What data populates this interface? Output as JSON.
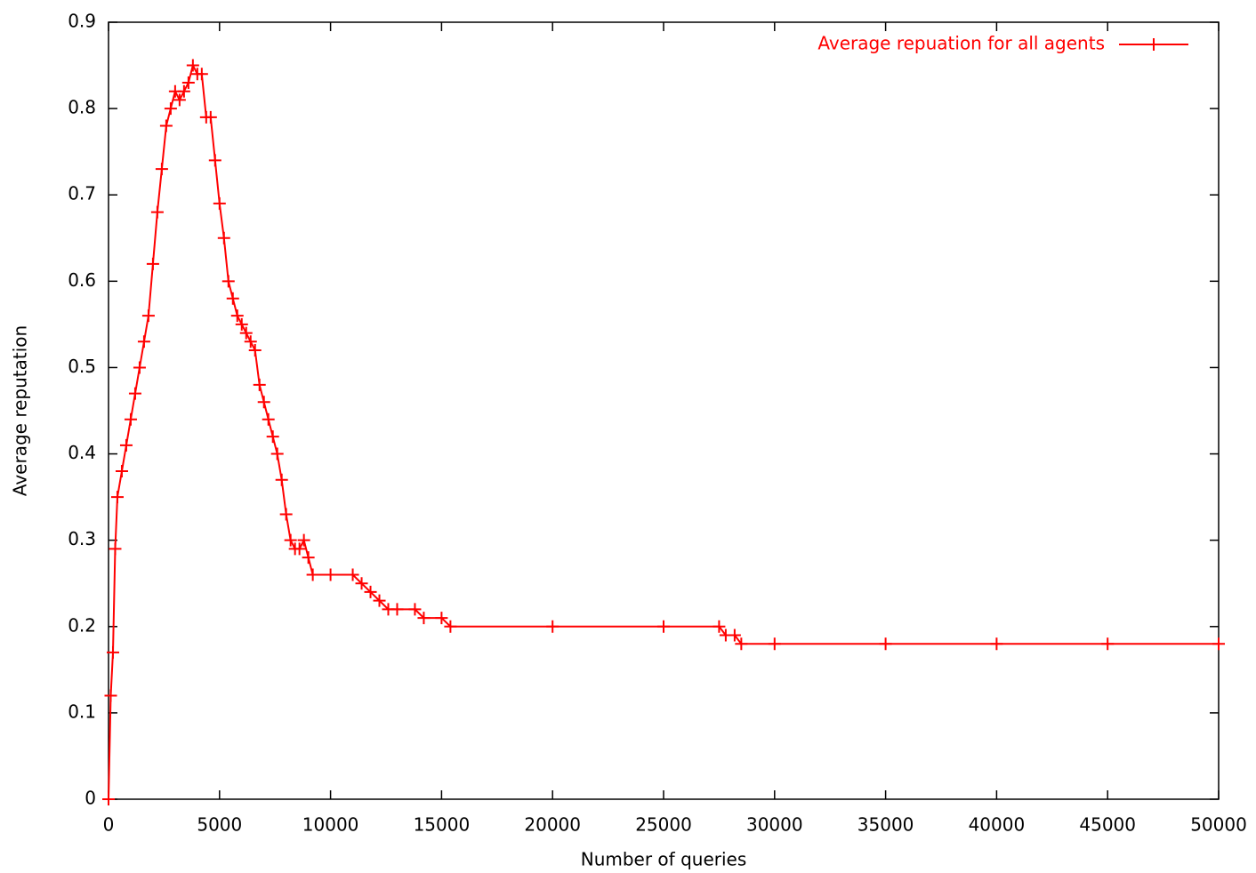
{
  "chart_data": {
    "type": "line",
    "xlabel": "Number of queries",
    "ylabel": "Average reputation",
    "x": [
      0,
      100,
      200,
      300,
      400,
      600,
      800,
      1000,
      1200,
      1400,
      1600,
      1800,
      2000,
      2200,
      2400,
      2600,
      2800,
      3000,
      3200,
      3400,
      3600,
      3800,
      4000,
      4200,
      4400,
      4600,
      4800,
      5000,
      5200,
      5400,
      5600,
      5800,
      6000,
      6200,
      6400,
      6600,
      6800,
      7000,
      7200,
      7400,
      7600,
      7800,
      8000,
      8200,
      8400,
      8600,
      8800,
      9000,
      9200,
      10000,
      11000,
      11400,
      11800,
      12200,
      12600,
      13000,
      13800,
      14200,
      15000,
      15400,
      20000,
      25000,
      27500,
      27800,
      28200,
      28500,
      30000,
      35000,
      40000,
      45000,
      50000
    ],
    "series": [
      {
        "name": "Average repuation for all agents",
        "color": "#ff0000",
        "values": [
          0,
          0.12,
          0.17,
          0.29,
          0.35,
          0.38,
          0.41,
          0.44,
          0.47,
          0.5,
          0.53,
          0.56,
          0.62,
          0.68,
          0.73,
          0.78,
          0.8,
          0.82,
          0.81,
          0.82,
          0.83,
          0.85,
          0.84,
          0.84,
          0.79,
          0.79,
          0.74,
          0.69,
          0.65,
          0.6,
          0.58,
          0.56,
          0.55,
          0.54,
          0.53,
          0.52,
          0.48,
          0.46,
          0.44,
          0.42,
          0.4,
          0.37,
          0.33,
          0.3,
          0.29,
          0.29,
          0.3,
          0.28,
          0.26,
          0.26,
          0.26,
          0.25,
          0.24,
          0.23,
          0.22,
          0.22,
          0.22,
          0.21,
          0.21,
          0.2,
          0.2,
          0.2,
          0.2,
          0.19,
          0.19,
          0.18,
          0.18,
          0.18,
          0.18,
          0.18,
          0.18
        ]
      }
    ],
    "xlim": [
      0,
      50000
    ],
    "xticks": [
      0,
      5000,
      10000,
      15000,
      20000,
      25000,
      30000,
      35000,
      40000,
      45000,
      50000
    ],
    "ylim": [
      0,
      0.9
    ],
    "yticks": [
      0,
      0.1,
      0.2,
      0.3,
      0.4,
      0.5,
      0.6,
      0.7,
      0.8,
      0.9
    ],
    "legend": "top right"
  }
}
